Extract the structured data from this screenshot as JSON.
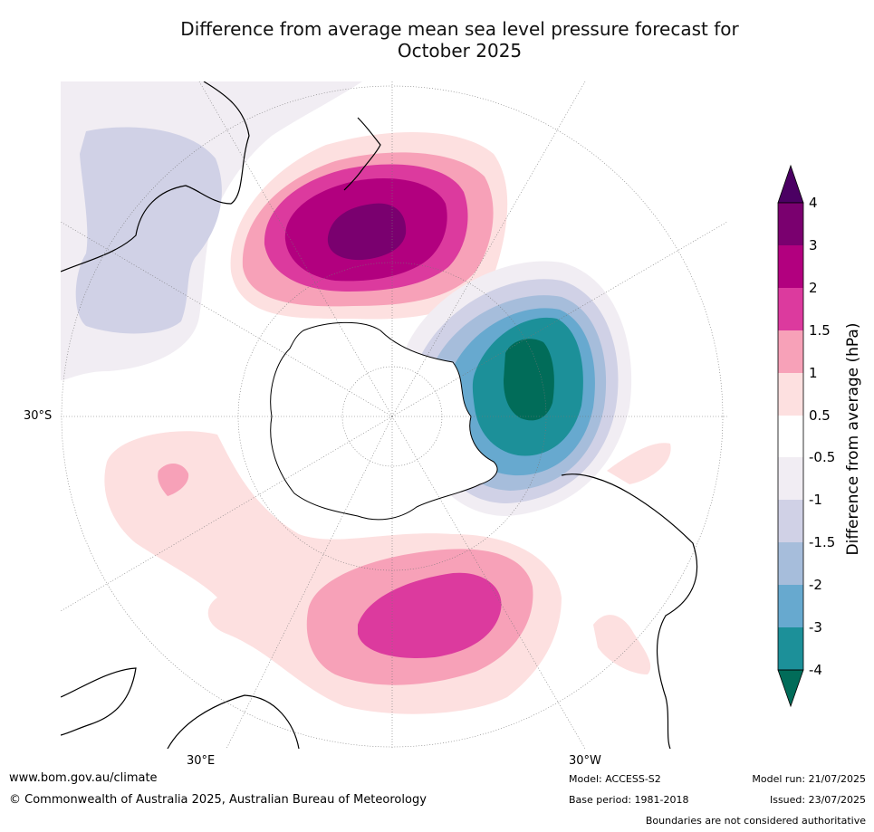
{
  "title_line1": "Difference from average mean sea level pressure forecast for",
  "title_line2": "October 2025",
  "colorbar": {
    "label": "Difference from average (hPa)",
    "ticks": [
      "4",
      "3",
      "2",
      "1.5",
      "1",
      "0.5",
      "-0.5",
      "-1",
      "-1.5",
      "-2",
      "-3",
      "-4"
    ],
    "colors": {
      "gt4": "#4b0063",
      "3to4": "#7a006f",
      "2to3": "#b2007f",
      "1.5to2": "#dc3a9e",
      "1to1.5": "#f7a1b8",
      "0.5to1": "#fde0e0",
      "neutral": "#ffffff",
      "m1tom0.5": "#f1edf3",
      "m1.5tom1": "#d0d1e6",
      "m2tom1.5": "#a6bddb",
      "m3tom2": "#67a9cf",
      "m4tom3": "#1c9099",
      "lt_m4": "#016c59"
    }
  },
  "map_labels": {
    "lat_30s": "30°S",
    "lon_30e": "30°E",
    "lon_30w": "30°W"
  },
  "footer": {
    "website": "www.bom.gov.au/climate",
    "copyright": "© Commonwealth of Australia 2025, Australian Bureau of Meteorology",
    "model": "Model: ACCESS-S2",
    "base_period": "Base period: 1981-2018",
    "model_run": "Model run: 21/07/2025",
    "issued": "Issued: 23/07/2025",
    "disclaimer": "Boundaries are not considered authoritative"
  }
}
